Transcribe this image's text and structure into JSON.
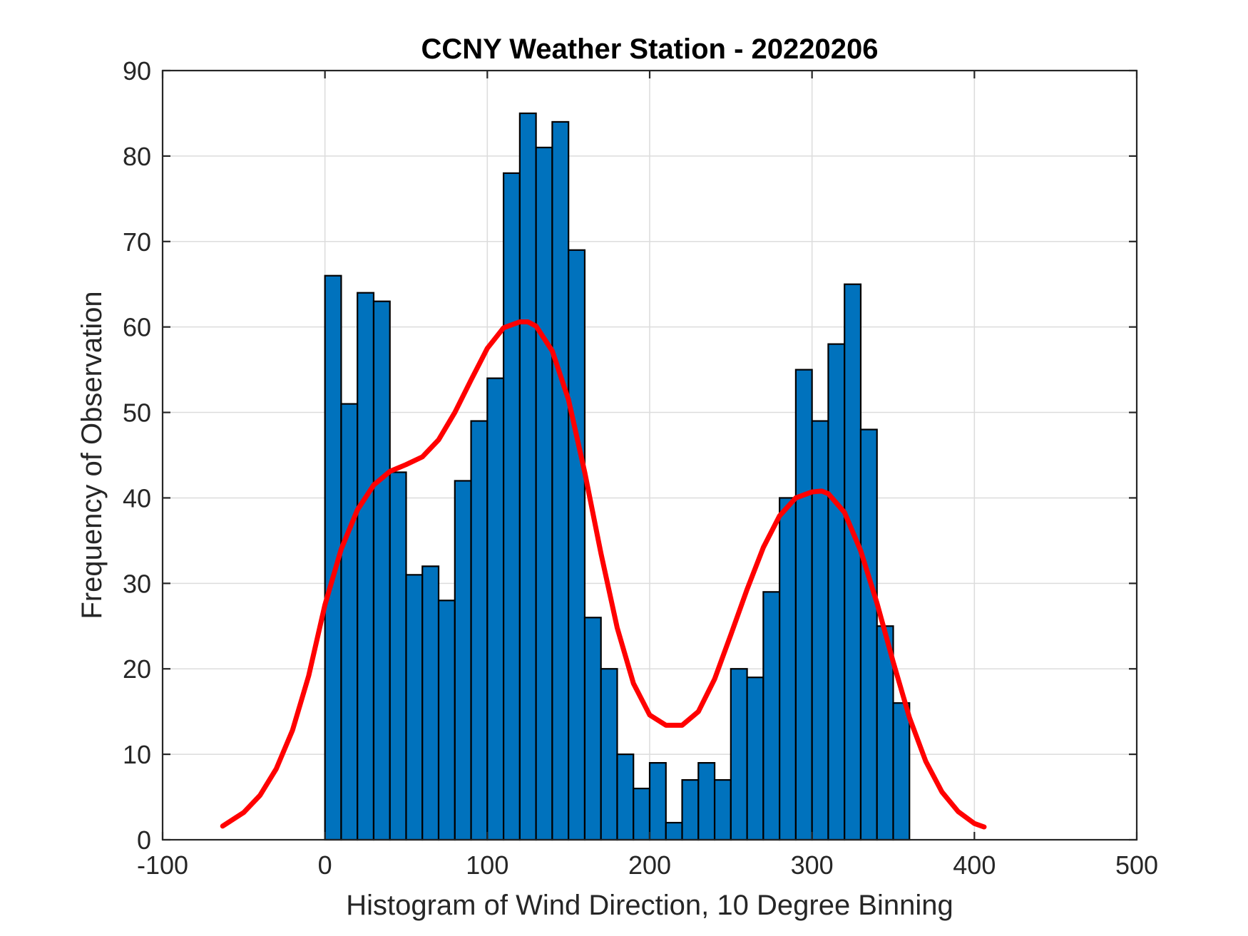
{
  "chart_data": {
    "type": "bar",
    "title": "CCNY Weather Station - 20220206",
    "xlabel": "Histogram of Wind Direction, 10 Degree Binning",
    "ylabel": "Frequency of Observation",
    "xlim": [
      -100,
      500
    ],
    "ylim": [
      0,
      90
    ],
    "xticks": [
      -100,
      0,
      100,
      200,
      300,
      400,
      500
    ],
    "yticks": [
      0,
      10,
      20,
      30,
      40,
      50,
      60,
      70,
      80,
      90
    ],
    "grid": true,
    "bin_width": 10,
    "bin_edges_start": [
      0,
      10,
      20,
      30,
      40,
      50,
      60,
      70,
      80,
      90,
      100,
      110,
      120,
      130,
      140,
      150,
      160,
      170,
      180,
      190,
      200,
      210,
      220,
      230,
      240,
      250,
      260,
      270,
      280,
      290,
      300,
      310,
      320,
      330,
      340,
      350
    ],
    "values": [
      66,
      51,
      64,
      63,
      43,
      31,
      32,
      28,
      42,
      49,
      54,
      78,
      85,
      81,
      84,
      69,
      26,
      20,
      10,
      6,
      9,
      2,
      7,
      9,
      7,
      20,
      19,
      29,
      40,
      55,
      49,
      58,
      65,
      48,
      25,
      16
    ],
    "bar_color": "#0072BD",
    "fit_curve": {
      "color": "#FF0000",
      "x": [
        -63,
        -50,
        -40,
        -30,
        -20,
        -10,
        0,
        10,
        20,
        30,
        40,
        50,
        60,
        70,
        80,
        90,
        100,
        110,
        120,
        125,
        130,
        140,
        150,
        160,
        170,
        180,
        190,
        200,
        210,
        220,
        230,
        240,
        250,
        260,
        270,
        280,
        290,
        300,
        306,
        310,
        320,
        330,
        340,
        350,
        360,
        370,
        380,
        390,
        400,
        406
      ],
      "y": [
        1.6,
        3.2,
        5.2,
        8.3,
        12.8,
        19.2,
        27.5,
        34.0,
        38.6,
        41.5,
        43.1,
        43.9,
        44.8,
        46.8,
        50.0,
        53.8,
        57.5,
        59.9,
        60.6,
        60.6,
        60.1,
        57.2,
        51.5,
        43.0,
        33.5,
        24.8,
        18.3,
        14.6,
        13.4,
        13.4,
        15.0,
        18.8,
        24.0,
        29.3,
        34.2,
        37.9,
        40.0,
        40.7,
        40.8,
        40.5,
        38.3,
        33.8,
        27.7,
        20.8,
        14.3,
        9.2,
        5.6,
        3.3,
        1.9,
        1.5
      ]
    }
  }
}
